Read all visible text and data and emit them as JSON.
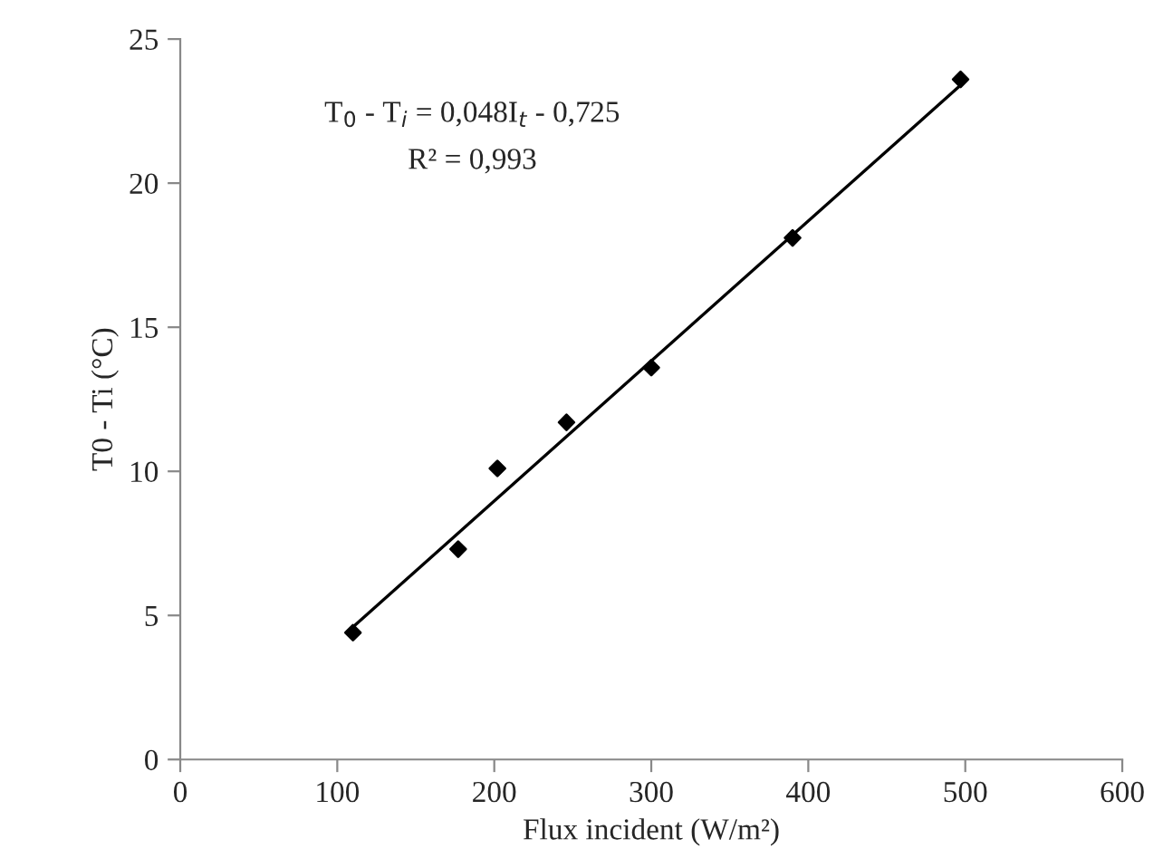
{
  "chart_data": {
    "type": "scatter",
    "xlabel": "Flux incident (W/m²)",
    "ylabel": "T0 - Ti (°C)",
    "annotations": [
      "T$_{0}$ - T$_{i}$ = 0,048I$_{t}$ - 0,725",
      "R² = 0,993"
    ],
    "series": [
      {
        "color": "#000000",
        "marker": "diamond",
        "x": [
          110,
          177,
          202,
          246,
          300,
          390,
          497
        ],
        "values": [
          4.4,
          7.3,
          10.1,
          11.7,
          13.6,
          18.1,
          23.6
        ]
      },
      {
        "type": "line",
        "color": "#000000",
        "line_style": "solid",
        "x": [
          110,
          497
        ],
        "values": [
          4.6,
          23.4
        ]
      }
    ],
    "xlim": [
      0,
      600
    ],
    "xticks": [
      0,
      100,
      200,
      300,
      400,
      500,
      600
    ],
    "ylim": [
      0,
      25
    ],
    "yticks": [
      0,
      5,
      10,
      15,
      20,
      25
    ],
    "grid": false,
    "legend": false
  }
}
